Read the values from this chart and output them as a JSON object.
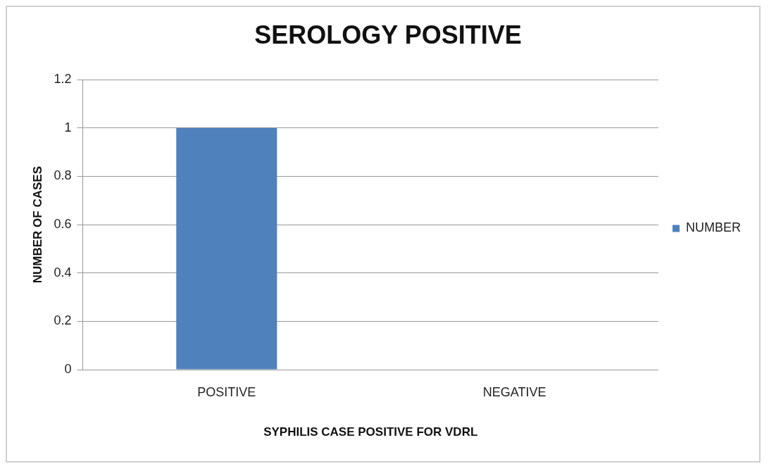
{
  "chart_data": {
    "type": "bar",
    "title": "SEROLOGY POSITIVE",
    "xlabel": "SYPHILIS CASE POSITIVE FOR VDRL",
    "ylabel": "NUMBER OF CASES",
    "categories": [
      "POSITIVE",
      "NEGATIVE"
    ],
    "series": [
      {
        "name": "NUMBER",
        "color": "#4f81bd",
        "values": [
          1,
          0
        ]
      }
    ],
    "ylim": [
      0,
      1.2
    ],
    "yticks": [
      0,
      0.2,
      0.4,
      0.6,
      0.8,
      1,
      1.2
    ],
    "grid": "y",
    "legend": "right"
  }
}
